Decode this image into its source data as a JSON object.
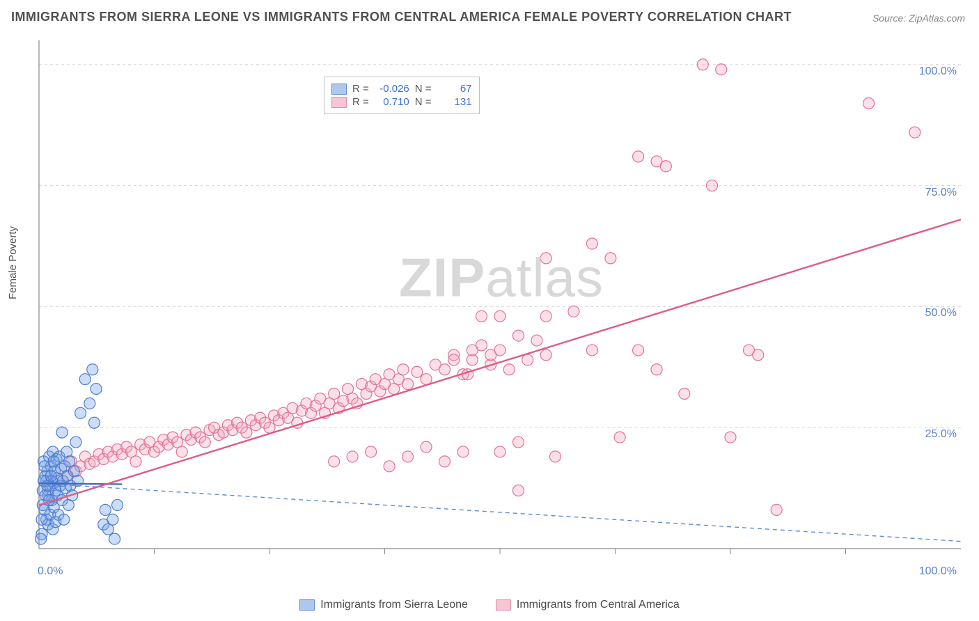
{
  "title": "IMMIGRANTS FROM SIERRA LEONE VS IMMIGRANTS FROM CENTRAL AMERICA FEMALE POVERTY CORRELATION CHART",
  "source": "Source: ZipAtlas.com",
  "y_axis_label": "Female Poverty",
  "watermark_part1": "ZIP",
  "watermark_part2": "atlas",
  "chart": {
    "type": "scatter",
    "xlim": [
      0,
      100
    ],
    "ylim": [
      0,
      105
    ],
    "x_tick_labels": [
      "0.0%",
      "100.0%"
    ],
    "x_tick_positions": [
      0,
      100
    ],
    "x_minor_ticks": [
      12.5,
      25,
      37.5,
      50,
      62.5,
      75,
      87.5
    ],
    "y_tick_labels": [
      "25.0%",
      "50.0%",
      "75.0%",
      "100.0%"
    ],
    "y_tick_positions": [
      25,
      50,
      75,
      100
    ],
    "grid_color": "#d8d8d8",
    "grid_dash": "4,4",
    "axis_color": "#888888",
    "background_color": "#ffffff",
    "marker_radius": 8,
    "marker_stroke_width": 1.2,
    "marker_fill_opacity": 0.35,
    "series": [
      {
        "name": "Immigrants from Sierra Leone",
        "fill_color": "#6f9de8",
        "stroke_color": "#4d7dd0",
        "swatch_fill": "#aec7ed",
        "swatch_border": "#5e8cd6",
        "R": "-0.026",
        "N": "67",
        "trend": {
          "x1": 0,
          "y1": 13.5,
          "x2": 100,
          "y2": 1.5,
          "dash": "6,5",
          "width": 1.4,
          "color": "#5e8cd6"
        },
        "trend_solid_segment": {
          "x1": 0,
          "y1": 13.5,
          "x2": 9,
          "y2": 13.3,
          "width": 2.2,
          "color": "#3b68c0"
        },
        "points": [
          [
            0.3,
            3
          ],
          [
            0.4,
            12
          ],
          [
            0.5,
            18
          ],
          [
            0.6,
            8
          ],
          [
            0.7,
            15
          ],
          [
            0.8,
            6
          ],
          [
            0.8,
            14
          ],
          [
            0.9,
            16
          ],
          [
            1.0,
            11
          ],
          [
            1.0,
            5
          ],
          [
            1.1,
            19
          ],
          [
            1.2,
            13
          ],
          [
            1.2,
            7
          ],
          [
            1.3,
            17
          ],
          [
            1.4,
            10
          ],
          [
            1.4,
            14
          ],
          [
            1.5,
            4
          ],
          [
            1.5,
            20
          ],
          [
            1.6,
            13.5
          ],
          [
            1.6,
            8.5
          ],
          [
            1.7,
            16
          ],
          [
            1.8,
            12
          ],
          [
            1.8,
            5.5
          ],
          [
            1.9,
            18.5
          ],
          [
            2.0,
            11
          ],
          [
            2.0,
            14.5
          ],
          [
            2.1,
            7
          ],
          [
            2.2,
            19
          ],
          [
            2.3,
            13
          ],
          [
            2.4,
            16.5
          ],
          [
            2.5,
            10
          ],
          [
            2.5,
            24
          ],
          [
            2.6,
            14
          ],
          [
            2.7,
            6
          ],
          [
            2.8,
            17
          ],
          [
            2.9,
            12.5
          ],
          [
            3.0,
            20
          ],
          [
            3.1,
            15
          ],
          [
            3.2,
            9
          ],
          [
            3.3,
            18
          ],
          [
            3.4,
            13
          ],
          [
            3.6,
            11
          ],
          [
            3.8,
            16
          ],
          [
            4.0,
            22
          ],
          [
            4.2,
            14
          ],
          [
            4.5,
            28
          ],
          [
            5.0,
            35
          ],
          [
            5.5,
            30
          ],
          [
            5.8,
            37
          ],
          [
            6.0,
            26
          ],
          [
            6.2,
            33
          ],
          [
            7.0,
            5
          ],
          [
            7.2,
            8
          ],
          [
            7.5,
            4
          ],
          [
            8.0,
            6
          ],
          [
            8.2,
            2
          ],
          [
            8.5,
            9
          ],
          [
            0.2,
            2
          ],
          [
            0.3,
            6
          ],
          [
            0.4,
            9
          ],
          [
            0.5,
            14
          ],
          [
            0.6,
            17
          ],
          [
            0.7,
            11
          ],
          [
            0.9,
            13
          ],
          [
            1.1,
            10
          ],
          [
            1.3,
            15
          ],
          [
            1.6,
            18
          ]
        ]
      },
      {
        "name": "Immigrants from Central America",
        "fill_color": "#f4a7bb",
        "stroke_color": "#e27396",
        "swatch_fill": "#f7c5d3",
        "swatch_border": "#e48fa9",
        "R": "0.710",
        "N": "131",
        "trend": {
          "x1": 0,
          "y1": 9,
          "x2": 100,
          "y2": 68,
          "dash": "none",
          "width": 2.4,
          "color": "#e05b84"
        },
        "points": [
          [
            1,
            12
          ],
          [
            2,
            14
          ],
          [
            3,
            15
          ],
          [
            3.5,
            18
          ],
          [
            4,
            16
          ],
          [
            4.5,
            17
          ],
          [
            5,
            19
          ],
          [
            5.5,
            17.5
          ],
          [
            6,
            18
          ],
          [
            6.5,
            19.5
          ],
          [
            7,
            18.5
          ],
          [
            7.5,
            20
          ],
          [
            8,
            19
          ],
          [
            8.5,
            20.5
          ],
          [
            9,
            19.5
          ],
          [
            9.5,
            21
          ],
          [
            10,
            20
          ],
          [
            10.5,
            18
          ],
          [
            11,
            21.5
          ],
          [
            11.5,
            20.5
          ],
          [
            12,
            22
          ],
          [
            12.5,
            20
          ],
          [
            13,
            21
          ],
          [
            13.5,
            22.5
          ],
          [
            14,
            21.5
          ],
          [
            14.5,
            23
          ],
          [
            15,
            22
          ],
          [
            15.5,
            20
          ],
          [
            16,
            23.5
          ],
          [
            16.5,
            22.5
          ],
          [
            17,
            24
          ],
          [
            17.5,
            23
          ],
          [
            18,
            22
          ],
          [
            18.5,
            24.5
          ],
          [
            19,
            25
          ],
          [
            19.5,
            23.5
          ],
          [
            20,
            24
          ],
          [
            20.5,
            25.5
          ],
          [
            21,
            24.5
          ],
          [
            21.5,
            26
          ],
          [
            22,
            25
          ],
          [
            22.5,
            24
          ],
          [
            23,
            26.5
          ],
          [
            23.5,
            25.5
          ],
          [
            24,
            27
          ],
          [
            24.5,
            26
          ],
          [
            25,
            25
          ],
          [
            25.5,
            27.5
          ],
          [
            26,
            26.5
          ],
          [
            26.5,
            28
          ],
          [
            27,
            27
          ],
          [
            27.5,
            29
          ],
          [
            28,
            26
          ],
          [
            28.5,
            28.5
          ],
          [
            29,
            30
          ],
          [
            29.5,
            28
          ],
          [
            30,
            29.5
          ],
          [
            30.5,
            31
          ],
          [
            31,
            28
          ],
          [
            31.5,
            30
          ],
          [
            32,
            32
          ],
          [
            32.5,
            29
          ],
          [
            33,
            30.5
          ],
          [
            33.5,
            33
          ],
          [
            34,
            31
          ],
          [
            34.5,
            30
          ],
          [
            35,
            34
          ],
          [
            35.5,
            32
          ],
          [
            36,
            33.5
          ],
          [
            36.5,
            35
          ],
          [
            37,
            32.5
          ],
          [
            37.5,
            34
          ],
          [
            38,
            36
          ],
          [
            38.5,
            33
          ],
          [
            39,
            35
          ],
          [
            39.5,
            37
          ],
          [
            40,
            34
          ],
          [
            41,
            36.5
          ],
          [
            42,
            35
          ],
          [
            43,
            38
          ],
          [
            44,
            37
          ],
          [
            45,
            40
          ],
          [
            46,
            36
          ],
          [
            47,
            39
          ],
          [
            48,
            42
          ],
          [
            49,
            38
          ],
          [
            50,
            41
          ],
          [
            51,
            37
          ],
          [
            52,
            44
          ],
          [
            52,
            22
          ],
          [
            53,
            39
          ],
          [
            54,
            43
          ],
          [
            55,
            40
          ],
          [
            48,
            48
          ],
          [
            50,
            20
          ],
          [
            52,
            12
          ],
          [
            55,
            60
          ],
          [
            56,
            19
          ],
          [
            58,
            49
          ],
          [
            60,
            63
          ],
          [
            60,
            41
          ],
          [
            62,
            60
          ],
          [
            63,
            23
          ],
          [
            65,
            81
          ],
          [
            65,
            41
          ],
          [
            67,
            80
          ],
          [
            67,
            37
          ],
          [
            68,
            79
          ],
          [
            70,
            32
          ],
          [
            72,
            100
          ],
          [
            73,
            75
          ],
          [
            74,
            99
          ],
          [
            75,
            23
          ],
          [
            77,
            41
          ],
          [
            78,
            40
          ],
          [
            80,
            8
          ],
          [
            90,
            92
          ],
          [
            95,
            86
          ],
          [
            44,
            18
          ],
          [
            40,
            19
          ],
          [
            36,
            20
          ],
          [
            38,
            17
          ],
          [
            42,
            21
          ],
          [
            46,
            20
          ],
          [
            50,
            48
          ],
          [
            32,
            18
          ],
          [
            34,
            19
          ],
          [
            45,
            39
          ],
          [
            47,
            41
          ],
          [
            49,
            40
          ],
          [
            46.5,
            36
          ],
          [
            55,
            48
          ]
        ]
      }
    ],
    "legend_bottom": [
      {
        "label": "Immigrants from Sierra Leone",
        "fill": "#aec7ed",
        "border": "#5e8cd6"
      },
      {
        "label": "Immigrants from Central America",
        "fill": "#f7c5d3",
        "border": "#e48fa9"
      }
    ],
    "legend_top_labels": {
      "R": "R  =",
      "N": "N  ="
    }
  }
}
